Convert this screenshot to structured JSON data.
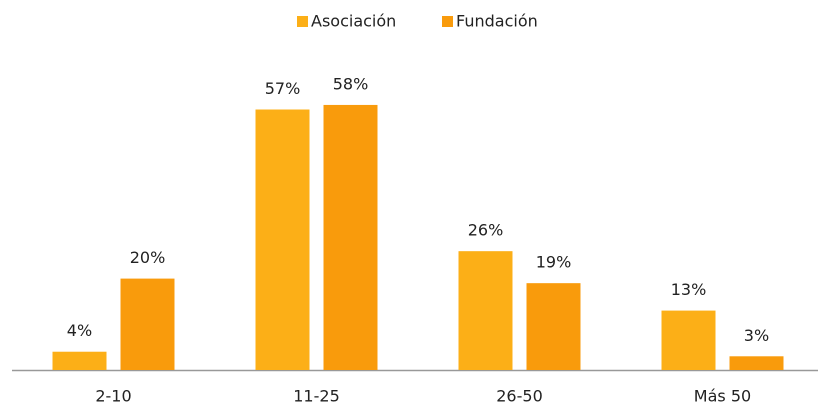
{
  "chart_data": {
    "type": "bar",
    "categories": [
      "2-10",
      "11-25",
      "26-50",
      "Más 50"
    ],
    "series": [
      {
        "name": "Asociación",
        "color": "#fcaf17",
        "values": [
          4,
          57,
          26,
          13
        ],
        "value_labels": [
          "4%",
          "57%",
          "26%",
          "13%"
        ]
      },
      {
        "name": "Fundación",
        "color": "#f99b0c",
        "values": [
          20,
          58,
          19,
          3
        ],
        "value_labels": [
          "20%",
          "58%",
          "19%",
          "3%"
        ]
      }
    ],
    "legend": "top"
  }
}
